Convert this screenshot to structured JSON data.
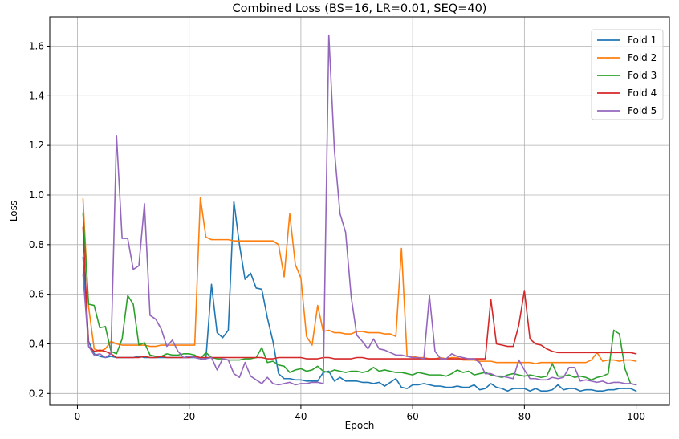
{
  "chart_data": {
    "type": "line",
    "title": "Combined Loss (BS=16, LR=0.01, SEQ=40)",
    "xlabel": "Epoch",
    "ylabel": "Loss",
    "xlim": [
      -4.95,
      105.95
    ],
    "ylim": [
      0.1525,
      1.718
    ],
    "xticks": [
      0,
      20,
      40,
      60,
      80,
      100
    ],
    "yticks": [
      0.2,
      0.4,
      0.6,
      0.8,
      1.0,
      1.2,
      1.4,
      1.6
    ],
    "ytick_labels": [
      "0.2",
      "0.4",
      "0.6",
      "0.8",
      "1.0",
      "1.2",
      "1.4",
      "1.6"
    ],
    "grid": true,
    "legend_position": "upper right",
    "colors": [
      "#1f77b4",
      "#ff7f0e",
      "#2ca02c",
      "#d62728",
      "#9467bd"
    ],
    "series": [
      {
        "name": "Fold 1",
        "values": [
          0.75,
          0.41,
          0.36,
          0.35,
          0.345,
          0.35,
          0.345,
          0.345,
          0.345,
          0.345,
          0.35,
          0.345,
          0.345,
          0.345,
          0.345,
          0.345,
          0.345,
          0.345,
          0.345,
          0.345,
          0.345,
          0.34,
          0.34,
          0.64,
          0.445,
          0.425,
          0.455,
          0.975,
          0.8,
          0.66,
          0.685,
          0.625,
          0.62,
          0.505,
          0.41,
          0.28,
          0.26,
          0.26,
          0.255,
          0.255,
          0.25,
          0.25,
          0.25,
          0.285,
          0.29,
          0.25,
          0.265,
          0.25,
          0.25,
          0.25,
          0.245,
          0.245,
          0.24,
          0.245,
          0.23,
          0.245,
          0.26,
          0.225,
          0.22,
          0.235,
          0.235,
          0.24,
          0.235,
          0.23,
          0.23,
          0.225,
          0.225,
          0.23,
          0.225,
          0.225,
          0.235,
          0.215,
          0.22,
          0.24,
          0.225,
          0.22,
          0.21,
          0.22,
          0.22,
          0.22,
          0.21,
          0.22,
          0.21,
          0.21,
          0.215,
          0.235,
          0.215,
          0.22,
          0.22,
          0.21,
          0.215,
          0.215,
          0.21,
          0.21,
          0.215,
          0.215,
          0.22,
          0.22,
          0.22,
          0.21
        ]
      },
      {
        "name": "Fold 2",
        "values": [
          0.985,
          0.55,
          0.38,
          0.37,
          0.38,
          0.41,
          0.4,
          0.395,
          0.395,
          0.395,
          0.395,
          0.395,
          0.39,
          0.39,
          0.395,
          0.395,
          0.395,
          0.395,
          0.395,
          0.395,
          0.395,
          0.99,
          0.83,
          0.82,
          0.82,
          0.82,
          0.82,
          0.815,
          0.815,
          0.815,
          0.815,
          0.815,
          0.815,
          0.815,
          0.815,
          0.8,
          0.67,
          0.925,
          0.72,
          0.665,
          0.43,
          0.395,
          0.555,
          0.45,
          0.455,
          0.445,
          0.445,
          0.44,
          0.44,
          0.45,
          0.45,
          0.445,
          0.445,
          0.445,
          0.44,
          0.44,
          0.43,
          0.785,
          0.35,
          0.35,
          0.345,
          0.345,
          0.34,
          0.34,
          0.345,
          0.34,
          0.345,
          0.345,
          0.335,
          0.335,
          0.335,
          0.33,
          0.33,
          0.33,
          0.325,
          0.325,
          0.325,
          0.325,
          0.325,
          0.325,
          0.325,
          0.32,
          0.325,
          0.325,
          0.325,
          0.325,
          0.325,
          0.325,
          0.325,
          0.325,
          0.325,
          0.335,
          0.365,
          0.33,
          0.335,
          0.335,
          0.33,
          0.335,
          0.335,
          0.33
        ]
      },
      {
        "name": "Fold 3",
        "values": [
          0.925,
          0.56,
          0.555,
          0.465,
          0.47,
          0.37,
          0.36,
          0.42,
          0.595,
          0.56,
          0.395,
          0.405,
          0.355,
          0.35,
          0.35,
          0.36,
          0.355,
          0.355,
          0.36,
          0.36,
          0.355,
          0.34,
          0.365,
          0.345,
          0.34,
          0.34,
          0.335,
          0.335,
          0.335,
          0.34,
          0.34,
          0.345,
          0.385,
          0.325,
          0.33,
          0.315,
          0.31,
          0.285,
          0.295,
          0.3,
          0.29,
          0.295,
          0.31,
          0.29,
          0.285,
          0.295,
          0.29,
          0.285,
          0.29,
          0.29,
          0.285,
          0.29,
          0.305,
          0.29,
          0.295,
          0.29,
          0.285,
          0.285,
          0.28,
          0.275,
          0.285,
          0.28,
          0.275,
          0.275,
          0.275,
          0.27,
          0.28,
          0.295,
          0.285,
          0.29,
          0.275,
          0.28,
          0.285,
          0.275,
          0.27,
          0.265,
          0.275,
          0.28,
          0.275,
          0.27,
          0.275,
          0.27,
          0.265,
          0.27,
          0.32,
          0.27,
          0.27,
          0.275,
          0.265,
          0.27,
          0.265,
          0.255,
          0.265,
          0.27,
          0.28,
          0.455,
          0.44,
          0.3,
          0.24,
          0.235
        ]
      },
      {
        "name": "Fold 4",
        "values": [
          0.87,
          0.39,
          0.37,
          0.375,
          0.37,
          0.36,
          0.345,
          0.345,
          0.345,
          0.345,
          0.345,
          0.35,
          0.345,
          0.345,
          0.35,
          0.345,
          0.345,
          0.345,
          0.345,
          0.345,
          0.35,
          0.345,
          0.345,
          0.345,
          0.345,
          0.345,
          0.345,
          0.345,
          0.345,
          0.345,
          0.345,
          0.345,
          0.345,
          0.34,
          0.34,
          0.345,
          0.345,
          0.345,
          0.345,
          0.345,
          0.34,
          0.34,
          0.34,
          0.345,
          0.345,
          0.34,
          0.34,
          0.34,
          0.34,
          0.345,
          0.345,
          0.34,
          0.34,
          0.34,
          0.34,
          0.34,
          0.34,
          0.34,
          0.34,
          0.34,
          0.34,
          0.34,
          0.34,
          0.34,
          0.34,
          0.34,
          0.34,
          0.34,
          0.34,
          0.34,
          0.34,
          0.34,
          0.34,
          0.58,
          0.4,
          0.395,
          0.39,
          0.39,
          0.475,
          0.615,
          0.42,
          0.4,
          0.395,
          0.38,
          0.37,
          0.365,
          0.365,
          0.365,
          0.365,
          0.365,
          0.365,
          0.365,
          0.365,
          0.365,
          0.365,
          0.365,
          0.365,
          0.365,
          0.365,
          0.36
        ]
      },
      {
        "name": "Fold 5",
        "values": [
          0.68,
          0.39,
          0.355,
          0.36,
          0.345,
          0.36,
          1.24,
          0.825,
          0.825,
          0.7,
          0.715,
          0.965,
          0.515,
          0.5,
          0.46,
          0.39,
          0.415,
          0.37,
          0.345,
          0.35,
          0.345,
          0.34,
          0.34,
          0.345,
          0.295,
          0.34,
          0.335,
          0.28,
          0.265,
          0.325,
          0.27,
          0.255,
          0.24,
          0.265,
          0.24,
          0.235,
          0.24,
          0.245,
          0.235,
          0.24,
          0.24,
          0.245,
          0.245,
          0.24,
          1.645,
          1.18,
          0.925,
          0.85,
          0.59,
          0.435,
          0.41,
          0.38,
          0.42,
          0.38,
          0.375,
          0.365,
          0.355,
          0.355,
          0.35,
          0.345,
          0.345,
          0.34,
          0.595,
          0.37,
          0.34,
          0.34,
          0.36,
          0.35,
          0.345,
          0.34,
          0.34,
          0.325,
          0.28,
          0.28,
          0.27,
          0.27,
          0.265,
          0.26,
          0.335,
          0.295,
          0.26,
          0.26,
          0.255,
          0.255,
          0.265,
          0.26,
          0.265,
          0.305,
          0.305,
          0.25,
          0.255,
          0.25,
          0.245,
          0.25,
          0.24,
          0.245,
          0.245,
          0.24,
          0.24,
          0.235
        ]
      }
    ]
  }
}
